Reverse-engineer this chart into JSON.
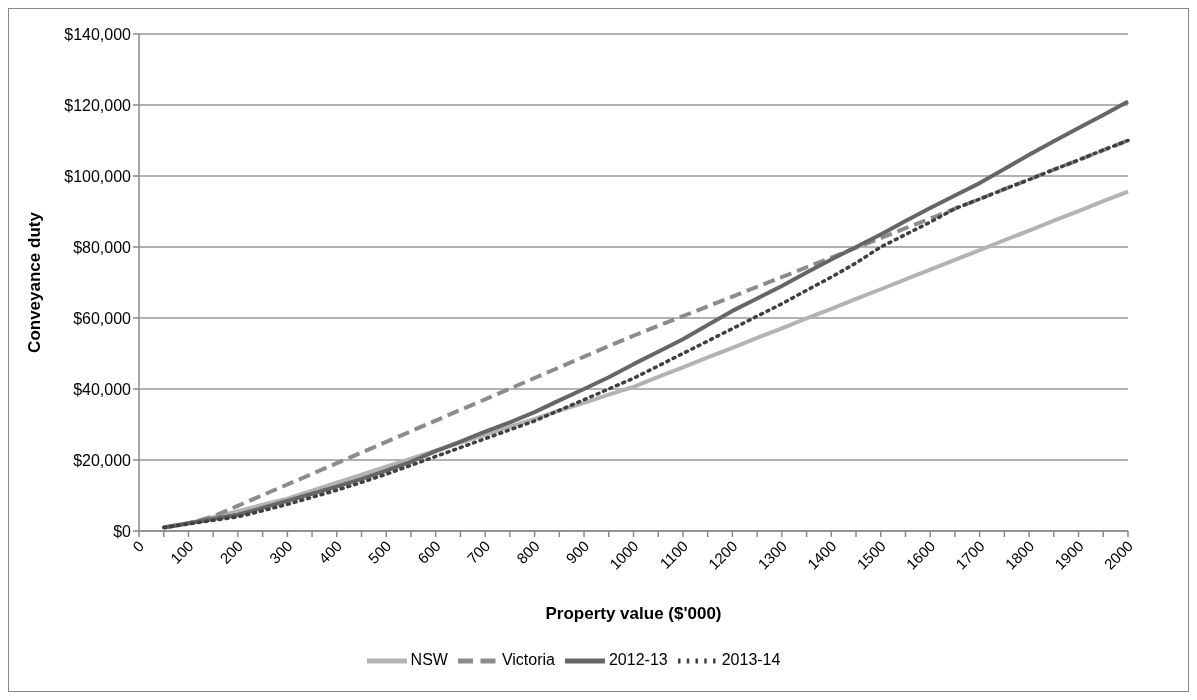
{
  "chart_data": {
    "type": "line",
    "xlabel": "Property value ($'000)",
    "ylabel": "Conveyance duty",
    "categories": [
      "0",
      null,
      "100",
      null,
      "200",
      null,
      "300",
      null,
      "400",
      null,
      "500",
      null,
      "600",
      null,
      "700",
      null,
      "800",
      null,
      "900",
      null,
      "1000",
      null,
      "1100",
      null,
      "1200",
      null,
      "1300",
      null,
      "1400",
      null,
      "1500",
      null,
      "1600",
      null,
      "1700",
      null,
      "1800",
      null,
      "1900",
      null,
      "2000"
    ],
    "ylim": [
      0,
      140000
    ],
    "yticks": [
      {
        "value": 0,
        "label": "$0"
      },
      {
        "value": 20000,
        "label": "$20,000"
      },
      {
        "value": 40000,
        "label": "$40,000"
      },
      {
        "value": 60000,
        "label": "$60,000"
      },
      {
        "value": 80000,
        "label": "$80,000"
      },
      {
        "value": 100000,
        "label": "$100,000"
      },
      {
        "value": 120000,
        "label": "$120,000"
      },
      {
        "value": 140000,
        "label": "$140,000"
      }
    ],
    "grid": "y",
    "legend": "bottom",
    "marker": "none",
    "series": [
      {
        "name": "NSW",
        "color": "#b3b3b3",
        "line_style": "solid",
        "values": [
          null,
          900,
          2100,
          3900,
          5600,
          7400,
          9100,
          11400,
          13600,
          15900,
          18100,
          20400,
          22600,
          24900,
          27100,
          29400,
          31600,
          33900,
          36100,
          38400,
          40600,
          43400,
          46100,
          48900,
          51600,
          54400,
          57100,
          59900,
          62600,
          65400,
          68100,
          70900,
          73600,
          76400,
          79100,
          81900,
          84600,
          87400,
          90100,
          92900,
          95600
        ]
      },
      {
        "name": "Victoria",
        "color": "#8c8c8c",
        "line_style": "dashed",
        "values": [
          null,
          1000,
          2200,
          4100,
          7100,
          10100,
          13100,
          16100,
          19100,
          22100,
          25100,
          28100,
          31100,
          34100,
          37100,
          40100,
          43100,
          46100,
          49100,
          52100,
          55000,
          57800,
          60500,
          63300,
          66000,
          68800,
          71500,
          74300,
          77000,
          79800,
          82500,
          85300,
          88000,
          90800,
          93500,
          96300,
          99000,
          101800,
          104500,
          107300,
          110000
        ]
      },
      {
        "name": "2012-13",
        "color": "#666666",
        "line_style": "solid",
        "values": [
          null,
          1000,
          2200,
          3400,
          4600,
          6500,
          8500,
          10500,
          12500,
          14700,
          17000,
          19500,
          22500,
          25200,
          28000,
          30600,
          33500,
          36800,
          40000,
          43300,
          47000,
          50500,
          54000,
          58000,
          62000,
          65500,
          69000,
          72800,
          76500,
          80000,
          83500,
          87300,
          91000,
          94500,
          98000,
          102000,
          106000,
          109800,
          113500,
          117200,
          121000
        ]
      },
      {
        "name": "2013-14",
        "color": "#404040",
        "line_style": "dotted",
        "values": [
          null,
          1000,
          2000,
          3000,
          4000,
          5700,
          7500,
          9500,
          11500,
          13700,
          16000,
          18500,
          21000,
          23500,
          26000,
          28500,
          31000,
          34000,
          37000,
          40000,
          43000,
          46500,
          50000,
          53500,
          57000,
          60500,
          64000,
          67800,
          71500,
          75500,
          80000,
          83500,
          87000,
          90800,
          93500,
          96300,
          99000,
          101800,
          104500,
          107300,
          110000
        ]
      }
    ]
  }
}
